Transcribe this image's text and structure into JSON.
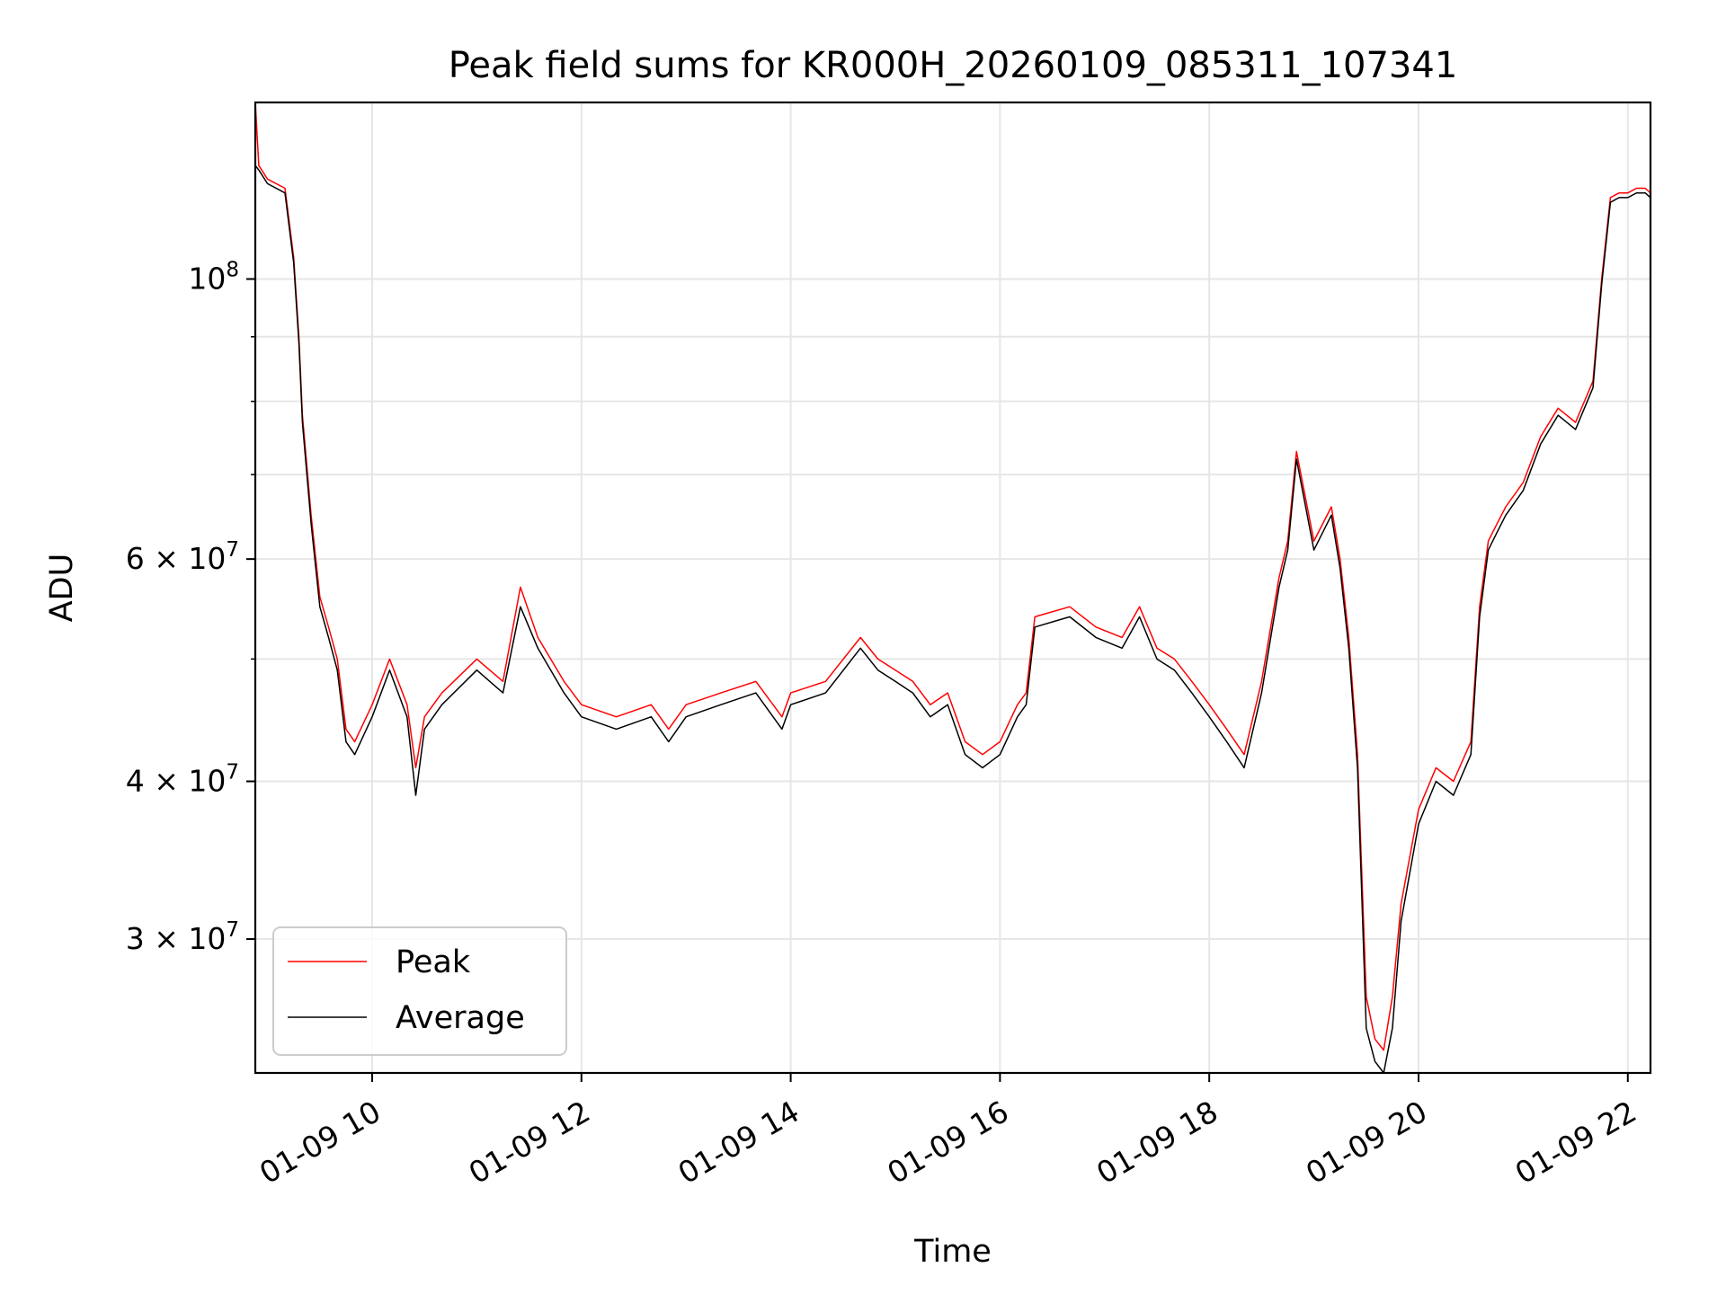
{
  "chart_data": {
    "type": "line",
    "title": "Peak field sums for KR000H_20260109_085311_107341",
    "xlabel": "Time",
    "ylabel": "ADU",
    "y_scale": "log",
    "grid": true,
    "legend_position": "lower-left",
    "xlim": [
      "01-09 08:53",
      "01-09 22:13"
    ],
    "ylim": [
      23500000,
      138000000
    ],
    "x_ticks": [
      "01-09 10",
      "01-09 12",
      "01-09 14",
      "01-09 16",
      "01-09 18",
      "01-09 20",
      "01-09 22"
    ],
    "y_ticks": [
      {
        "value": 30000000,
        "label": "3 × 10^7"
      },
      {
        "value": 40000000,
        "label": "4 × 10^7"
      },
      {
        "value": 60000000,
        "label": "6 × 10^7"
      },
      {
        "value": 100000000,
        "label": "10^8"
      }
    ],
    "series": [
      {
        "name": "Peak",
        "color": "#ff0000",
        "x": [
          "01-09 08:53",
          "01-09 08:55",
          "01-09 09:00",
          "01-09 09:10",
          "01-09 09:15",
          "01-09 09:18",
          "01-09 09:20",
          "01-09 09:25",
          "01-09 09:30",
          "01-09 09:35",
          "01-09 09:40",
          "01-09 09:45",
          "01-09 09:50",
          "01-09 10:00",
          "01-09 10:10",
          "01-09 10:20",
          "01-09 10:25",
          "01-09 10:30",
          "01-09 10:40",
          "01-09 11:00",
          "01-09 11:15",
          "01-09 11:25",
          "01-09 11:35",
          "01-09 11:50",
          "01-09 12:00",
          "01-09 12:20",
          "01-09 12:40",
          "01-09 12:50",
          "01-09 13:00",
          "01-09 13:20",
          "01-09 13:40",
          "01-09 13:55",
          "01-09 14:00",
          "01-09 14:20",
          "01-09 14:40",
          "01-09 14:50",
          "01-09 15:00",
          "01-09 15:10",
          "01-09 15:20",
          "01-09 15:30",
          "01-09 15:40",
          "01-09 15:50",
          "01-09 16:00",
          "01-09 16:10",
          "01-09 16:15",
          "01-09 16:20",
          "01-09 16:40",
          "01-09 16:55",
          "01-09 17:10",
          "01-09 17:20",
          "01-09 17:30",
          "01-09 17:40",
          "01-09 17:50",
          "01-09 18:00",
          "01-09 18:10",
          "01-09 18:20",
          "01-09 18:30",
          "01-09 18:40",
          "01-09 18:45",
          "01-09 18:50",
          "01-09 19:00",
          "01-09 19:10",
          "01-09 19:15",
          "01-09 19:20",
          "01-09 19:25",
          "01-09 19:30",
          "01-09 19:35",
          "01-09 19:40",
          "01-09 19:45",
          "01-09 19:50",
          "01-09 20:00",
          "01-09 20:10",
          "01-09 20:20",
          "01-09 20:30",
          "01-09 20:35",
          "01-09 20:40",
          "01-09 20:45",
          "01-09 20:50",
          "01-09 21:00",
          "01-09 21:10",
          "01-09 21:20",
          "01-09 21:30",
          "01-09 21:40",
          "01-09 21:45",
          "01-09 21:50",
          "01-09 21:55",
          "01-09 22:00",
          "01-09 22:05",
          "01-09 22:10",
          "01-09 22:13"
        ],
        "values": [
          138000000,
          123000000,
          120000000,
          118000000,
          104000000,
          90000000,
          78000000,
          65000000,
          56000000,
          53000000,
          50000000,
          44000000,
          43000000,
          46000000,
          50000000,
          46000000,
          41000000,
          45000000,
          47000000,
          50000000,
          48000000,
          57000000,
          52000000,
          48000000,
          46000000,
          45000000,
          46000000,
          44000000,
          46000000,
          47000000,
          48000000,
          45000000,
          47000000,
          48000000,
          52000000,
          50000000,
          49000000,
          48000000,
          46000000,
          47000000,
          43000000,
          42000000,
          43000000,
          46000000,
          47000000,
          54000000,
          55000000,
          53000000,
          52000000,
          55000000,
          51000000,
          50000000,
          48000000,
          46000000,
          44000000,
          42000000,
          48000000,
          58000000,
          62000000,
          73000000,
          62000000,
          66000000,
          60000000,
          52000000,
          42000000,
          27000000,
          25000000,
          24500000,
          27000000,
          32000000,
          38000000,
          41000000,
          40000000,
          43000000,
          55000000,
          62000000,
          64000000,
          66000000,
          69000000,
          75000000,
          79000000,
          77000000,
          83000000,
          100000000,
          116000000,
          117000000,
          117000000,
          118000000,
          118000000,
          117000000
        ]
      },
      {
        "name": "Average",
        "color": "#000000",
        "x": [
          "01-09 08:53",
          "01-09 08:55",
          "01-09 09:00",
          "01-09 09:10",
          "01-09 09:15",
          "01-09 09:18",
          "01-09 09:20",
          "01-09 09:25",
          "01-09 09:30",
          "01-09 09:35",
          "01-09 09:40",
          "01-09 09:45",
          "01-09 09:50",
          "01-09 10:00",
          "01-09 10:10",
          "01-09 10:20",
          "01-09 10:25",
          "01-09 10:30",
          "01-09 10:40",
          "01-09 11:00",
          "01-09 11:15",
          "01-09 11:25",
          "01-09 11:35",
          "01-09 11:50",
          "01-09 12:00",
          "01-09 12:20",
          "01-09 12:40",
          "01-09 12:50",
          "01-09 13:00",
          "01-09 13:20",
          "01-09 13:40",
          "01-09 13:55",
          "01-09 14:00",
          "01-09 14:20",
          "01-09 14:40",
          "01-09 14:50",
          "01-09 15:00",
          "01-09 15:10",
          "01-09 15:20",
          "01-09 15:30",
          "01-09 15:40",
          "01-09 15:50",
          "01-09 16:00",
          "01-09 16:10",
          "01-09 16:15",
          "01-09 16:20",
          "01-09 16:40",
          "01-09 16:55",
          "01-09 17:10",
          "01-09 17:20",
          "01-09 17:30",
          "01-09 17:40",
          "01-09 17:50",
          "01-09 18:00",
          "01-09 18:10",
          "01-09 18:20",
          "01-09 18:30",
          "01-09 18:40",
          "01-09 18:45",
          "01-09 18:50",
          "01-09 19:00",
          "01-09 19:10",
          "01-09 19:15",
          "01-09 19:20",
          "01-09 19:25",
          "01-09 19:30",
          "01-09 19:35",
          "01-09 19:40",
          "01-09 19:45",
          "01-09 19:50",
          "01-09 20:00",
          "01-09 20:10",
          "01-09 20:20",
          "01-09 20:30",
          "01-09 20:35",
          "01-09 20:40",
          "01-09 20:45",
          "01-09 20:50",
          "01-09 21:00",
          "01-09 21:10",
          "01-09 21:20",
          "01-09 21:30",
          "01-09 21:40",
          "01-09 21:45",
          "01-09 21:50",
          "01-09 21:55",
          "01-09 22:00",
          "01-09 22:05",
          "01-09 22:10",
          "01-09 22:13"
        ],
        "values": [
          123000000,
          122000000,
          119000000,
          117000000,
          103000000,
          89000000,
          77000000,
          64000000,
          55000000,
          52000000,
          49000000,
          43000000,
          42000000,
          45000000,
          49000000,
          45000000,
          39000000,
          44000000,
          46000000,
          49000000,
          47000000,
          55000000,
          51000000,
          47000000,
          45000000,
          44000000,
          45000000,
          43000000,
          45000000,
          46000000,
          47000000,
          44000000,
          46000000,
          47000000,
          51000000,
          49000000,
          48000000,
          47000000,
          45000000,
          46000000,
          42000000,
          41000000,
          42000000,
          45000000,
          46000000,
          53000000,
          54000000,
          52000000,
          51000000,
          54000000,
          50000000,
          49000000,
          47000000,
          45000000,
          43000000,
          41000000,
          47000000,
          57000000,
          61000000,
          72000000,
          61000000,
          65000000,
          59000000,
          51000000,
          41000000,
          25500000,
          24000000,
          23500000,
          25500000,
          31000000,
          37000000,
          40000000,
          39000000,
          42000000,
          54000000,
          61000000,
          63000000,
          65000000,
          68000000,
          74000000,
          78000000,
          76000000,
          82000000,
          99000000,
          115000000,
          116000000,
          116000000,
          117000000,
          117000000,
          116000000
        ]
      }
    ]
  }
}
